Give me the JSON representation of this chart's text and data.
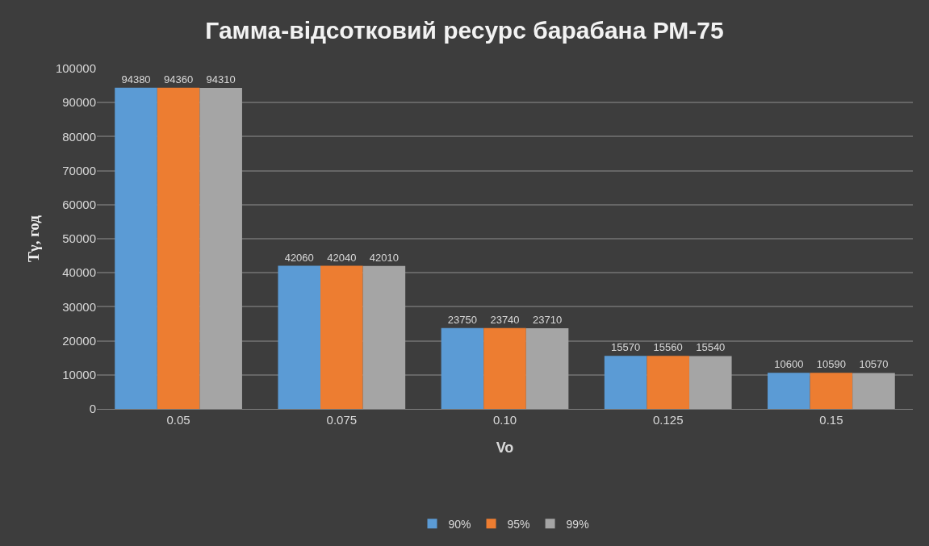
{
  "chart_data": {
    "type": "bar",
    "title": "Гамма-відсотковий ресурс барабана РМ-75",
    "xlabel": "Vo",
    "ylabel": "Tγ, год",
    "categories": [
      "0.05",
      "0.075",
      "0.10",
      "0.125",
      "0.15"
    ],
    "series": [
      {
        "name": "90%",
        "color": "#5b9bd5",
        "values": [
          94380,
          42060,
          23750,
          15570,
          10600
        ]
      },
      {
        "name": "95%",
        "color": "#ed7d31",
        "values": [
          94360,
          42040,
          23740,
          15560,
          10590
        ]
      },
      {
        "name": "99%",
        "color": "#a5a5a5",
        "values": [
          94310,
          42010,
          23710,
          15540,
          10570
        ]
      }
    ],
    "ylim": [
      0,
      100000
    ],
    "yticks": [
      0,
      10000,
      20000,
      30000,
      40000,
      50000,
      60000,
      70000,
      80000,
      90000,
      100000
    ],
    "grid": "y",
    "legend": "bottom",
    "data_labels": true
  }
}
